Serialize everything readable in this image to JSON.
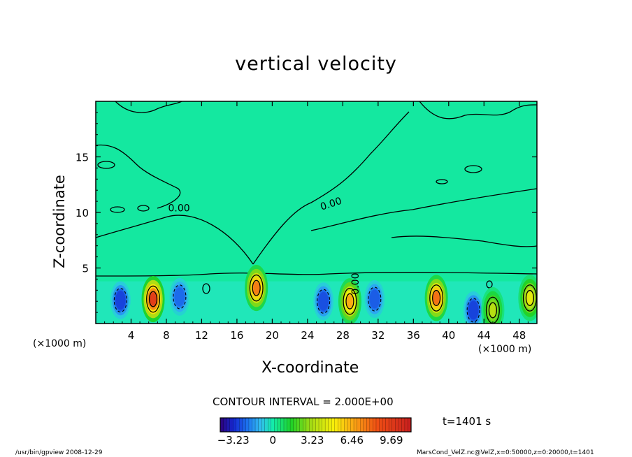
{
  "chart_data": {
    "type": "heatmap",
    "title": "vertical velocity",
    "xlabel": "X-coordinate",
    "ylabel": "Z-coordinate",
    "x_unit_left": "(×1000 m)",
    "x_unit_right": "(×1000 m)",
    "xlim": [
      0,
      50
    ],
    "ylim": [
      0,
      20
    ],
    "x_ticks": [
      4,
      8,
      12,
      16,
      20,
      24,
      28,
      32,
      36,
      40,
      44,
      48
    ],
    "y_ticks": [
      5,
      10,
      15
    ],
    "contour_interval": "CONTOUR INTERVAL = 2.000E+00",
    "contour_labels": [
      "0.00",
      "0.00",
      "0.00"
    ],
    "time": "t=1401 s",
    "colorbar": {
      "ticks": [
        -3.23,
        0,
        3.23,
        6.46,
        9.69
      ],
      "tick_labels": [
        "−3.23",
        "0",
        "3.23",
        "6.46",
        "9.69"
      ],
      "range": [
        -4.3,
        11.3
      ]
    },
    "updrafts": [
      {
        "x": 6.5,
        "z": 2.2,
        "peak": 9.5
      },
      {
        "x": 18.2,
        "z": 3.2,
        "peak": 7.5
      },
      {
        "x": 28.8,
        "z": 2.0,
        "peak": 6.5
      },
      {
        "x": 38.6,
        "z": 2.3,
        "peak": 7.8
      },
      {
        "x": 45.0,
        "z": 1.2,
        "peak": 3.5
      },
      {
        "x": 49.2,
        "z": 2.3,
        "peak": 4.5
      }
    ],
    "downdrafts": [
      {
        "x": 2.8,
        "z": 2.1,
        "peak": -2.8
      },
      {
        "x": 9.5,
        "z": 2.4,
        "peak": -2.2
      },
      {
        "x": 25.8,
        "z": 2.0,
        "peak": -2.6
      },
      {
        "x": 31.6,
        "z": 2.2,
        "peak": -2.4
      },
      {
        "x": 42.8,
        "z": 1.2,
        "peak": -2.8
      }
    ],
    "colors": {
      "background_field": "#14e8a0",
      "near_zero": "#10f0b0",
      "contour_line": "#000000"
    }
  },
  "footer": {
    "left": "/usr/bin/gpview   2008-12-29",
    "right": "MarsCond_VelZ.nc@VelZ,x=0:50000,z=0:20000,t=1401"
  }
}
